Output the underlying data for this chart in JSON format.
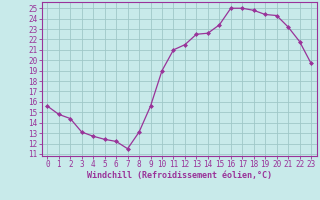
{
  "x": [
    0,
    1,
    2,
    3,
    4,
    5,
    6,
    7,
    8,
    9,
    10,
    11,
    12,
    13,
    14,
    15,
    16,
    17,
    18,
    19,
    20,
    21,
    22,
    23
  ],
  "y": [
    15.6,
    14.8,
    14.4,
    13.1,
    12.7,
    12.4,
    12.2,
    11.5,
    13.1,
    15.6,
    19.0,
    21.0,
    21.5,
    22.5,
    22.6,
    23.4,
    25.0,
    25.0,
    24.8,
    24.4,
    24.3,
    23.2,
    21.8,
    19.7
  ],
  "line_color": "#993399",
  "marker": "D",
  "marker_size": 2,
  "bg_color": "#c8eaea",
  "grid_color": "#a0c8c8",
  "xlabel": "Windchill (Refroidissement éolien,°C)",
  "ylabel_ticks": [
    11,
    12,
    13,
    14,
    15,
    16,
    17,
    18,
    19,
    20,
    21,
    22,
    23,
    24,
    25
  ],
  "xlim": [
    -0.5,
    23.5
  ],
  "ylim": [
    10.8,
    25.6
  ],
  "tick_fontsize": 5.5,
  "xlabel_fontsize": 6.0
}
